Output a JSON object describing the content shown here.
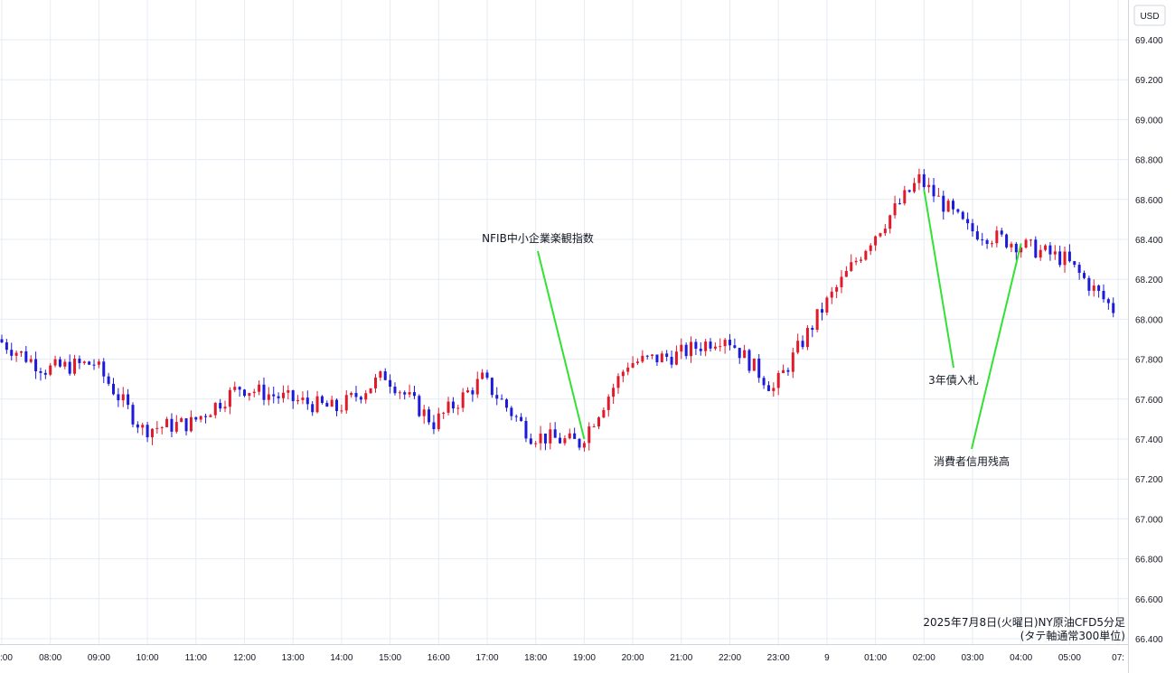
{
  "chart_data": {
    "type": "candlestick",
    "currency_label": "USD",
    "caption_line1": "2025年7月8日(火曜日)NY原油CFD5分足",
    "caption_line2": "(タテ軸通常300単位)",
    "y_ticks": [
      "69.400",
      "69.200",
      "69.000",
      "68.800",
      "68.600",
      "68.400",
      "68.200",
      "68.000",
      "67.800",
      "67.600",
      "67.400",
      "67.200",
      "67.000",
      "66.800",
      "66.600",
      "66.400"
    ],
    "x_ticks": [
      ":00",
      "08:00",
      "09:00",
      "10:00",
      "11:00",
      "12:00",
      "13:00",
      "14:00",
      "15:00",
      "16:00",
      "17:00",
      "18:00",
      "19:00",
      "20:00",
      "21:00",
      "22:00",
      "23:00",
      "9",
      "01:00",
      "02:00",
      "03:00",
      "04:00",
      "05:00",
      "07:"
    ],
    "ylim": [
      66.4,
      69.4
    ],
    "grid": true,
    "colors": {
      "up": "#e0192b",
      "down": "#1b1bd9",
      "annotation_line": "#33e133",
      "grid": "#e6ecf2"
    },
    "key_closes": [
      {
        "time": "07:00",
        "close": 67.9
      },
      {
        "time": "08:00",
        "close": 67.75
      },
      {
        "time": "09:00",
        "close": 67.78
      },
      {
        "time": "10:00",
        "close": 67.45
      },
      {
        "time": "11:00",
        "close": 67.48
      },
      {
        "time": "12:00",
        "close": 67.66
      },
      {
        "time": "13:00",
        "close": 67.6
      },
      {
        "time": "14:00",
        "close": 67.55
      },
      {
        "time": "15:00",
        "close": 67.72
      },
      {
        "time": "16:00",
        "close": 67.48
      },
      {
        "time": "17:00",
        "close": 67.7
      },
      {
        "time": "18:00",
        "close": 67.42
      },
      {
        "time": "19:00",
        "close": 67.38
      },
      {
        "time": "20:00",
        "close": 67.78
      },
      {
        "time": "21:00",
        "close": 67.82
      },
      {
        "time": "22:00",
        "close": 67.92
      },
      {
        "time": "23:00",
        "close": 67.65
      },
      {
        "time": "00:00",
        "close": 68.05
      },
      {
        "time": "01:00",
        "close": 68.4
      },
      {
        "time": "02:00",
        "close": 68.7
      },
      {
        "time": "03:00",
        "close": 68.45
      },
      {
        "time": "04:00",
        "close": 68.38
      },
      {
        "time": "05:00",
        "close": 68.3
      },
      {
        "time": "07:00",
        "close": 68.05
      }
    ],
    "annotations": [
      {
        "text": "NFIB中小企業楽観指数",
        "at_time": "19:00",
        "price": 67.4
      },
      {
        "text": "3年債入札",
        "at_time": "02:00",
        "price": 68.65
      },
      {
        "text": "消費者信用残高",
        "at_time": "04:00",
        "price": 68.38
      }
    ]
  }
}
